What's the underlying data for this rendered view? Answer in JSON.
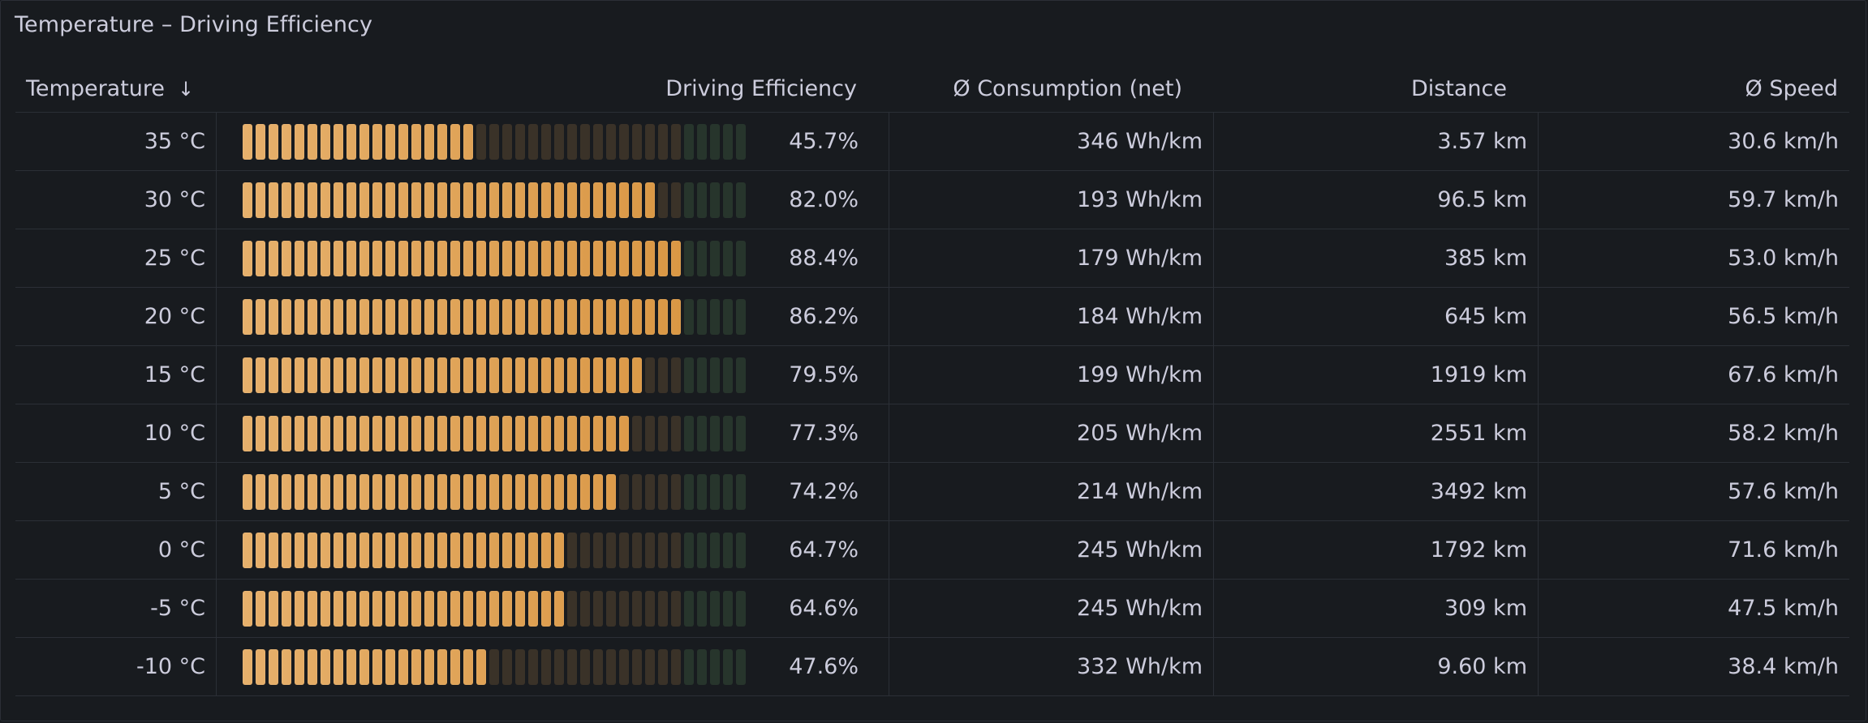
{
  "panel": {
    "title": "Temperature – Driving Efficiency"
  },
  "columns": {
    "temperature": "Temperature",
    "efficiency": "Driving Efficiency",
    "consumption": "Ø Consumption (net)",
    "distance": "Distance",
    "speed": "Ø Speed"
  },
  "colors": {
    "lit_start": "#e6b06c",
    "lit_end": "#d8943f",
    "unlit_orange": "#3a3228",
    "unlit_green": "#27352c"
  },
  "gauge": {
    "segments": 39,
    "threshold_segment": 34
  },
  "rows": [
    {
      "temperature": "35 °C",
      "efficiency": 0.457,
      "efficiency_label": "45.7%",
      "consumption": "346 Wh/km",
      "distance": "3.57 km",
      "speed": "30.6 km/h"
    },
    {
      "temperature": "30 °C",
      "efficiency": 0.82,
      "efficiency_label": "82.0%",
      "consumption": "193 Wh/km",
      "distance": "96.5 km",
      "speed": "59.7 km/h"
    },
    {
      "temperature": "25 °C",
      "efficiency": 0.884,
      "efficiency_label": "88.4%",
      "consumption": "179 Wh/km",
      "distance": "385 km",
      "speed": "53.0 km/h"
    },
    {
      "temperature": "20 °C",
      "efficiency": 0.862,
      "efficiency_label": "86.2%",
      "consumption": "184 Wh/km",
      "distance": "645 km",
      "speed": "56.5 km/h"
    },
    {
      "temperature": "15 °C",
      "efficiency": 0.795,
      "efficiency_label": "79.5%",
      "consumption": "199 Wh/km",
      "distance": "1919 km",
      "speed": "67.6 km/h"
    },
    {
      "temperature": "10 °C",
      "efficiency": 0.773,
      "efficiency_label": "77.3%",
      "consumption": "205 Wh/km",
      "distance": "2551 km",
      "speed": "58.2 km/h"
    },
    {
      "temperature": "5 °C",
      "efficiency": 0.742,
      "efficiency_label": "74.2%",
      "consumption": "214 Wh/km",
      "distance": "3492 km",
      "speed": "57.6 km/h"
    },
    {
      "temperature": "0 °C",
      "efficiency": 0.647,
      "efficiency_label": "64.7%",
      "consumption": "245 Wh/km",
      "distance": "1792 km",
      "speed": "71.6 km/h"
    },
    {
      "temperature": "-5 °C",
      "efficiency": 0.646,
      "efficiency_label": "64.6%",
      "consumption": "245 Wh/km",
      "distance": "309 km",
      "speed": "47.5 km/h"
    },
    {
      "temperature": "-10 °C",
      "efficiency": 0.476,
      "efficiency_label": "47.6%",
      "consumption": "332 Wh/km",
      "distance": "9.60 km",
      "speed": "38.4 km/h"
    }
  ]
}
